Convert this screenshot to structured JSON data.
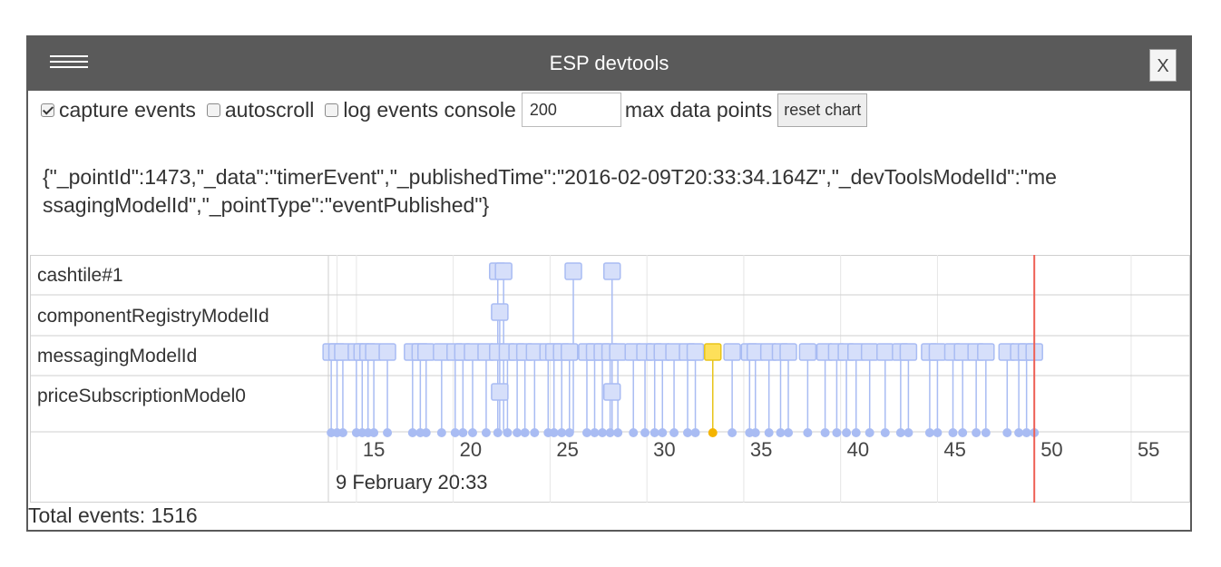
{
  "window": {
    "title": "ESP devtools",
    "close_label": "X"
  },
  "controls": {
    "capture_events": {
      "label": "capture events",
      "checked": true
    },
    "autoscroll": {
      "label": "autoscroll",
      "checked": false
    },
    "log_events_console": {
      "label": "log events console",
      "checked": false
    },
    "max_points_value": "200",
    "max_points_label": "max data points",
    "reset_label": "reset chart"
  },
  "event_json": "{\"_pointId\":1473,\"_data\":\"timerEvent\",\"_publishedTime\":\"2016-02-09T20:33:34.164Z\",\"_devToolsModelId\":\"messagingModelId\",\"_pointType\":\"eventPublished\"}",
  "chart_data": {
    "type": "scatter",
    "rows": [
      "cashtile#1",
      "componentRegistryModelId",
      "messagingModelId",
      "priceSubscriptionModel0"
    ],
    "x_ticks": [
      15,
      20,
      25,
      30,
      35,
      40,
      45,
      50,
      55
    ],
    "x_range": [
      13.6,
      58.0
    ],
    "date_label": "9 February 20:33",
    "now_marker": 50.0,
    "selected_point": {
      "row": "messagingModelId",
      "x": 33.4
    },
    "colors": {
      "point": "#d6dffa",
      "stroke": "#a9bcf3",
      "selected": "#fde05a",
      "selected_stroke": "#e8c41a",
      "now": "#ee6055",
      "grid": "#e6e6e6"
    },
    "messaging_points": [
      13.7,
      14.0,
      14.3,
      15.0,
      15.3,
      15.6,
      15.9,
      16.6,
      17.9,
      18.3,
      18.6,
      19.4,
      20.1,
      20.5,
      21.0,
      21.7,
      22.3,
      22.8,
      23.3,
      23.7,
      24.2,
      24.9,
      25.2,
      25.6,
      26.0,
      26.9,
      27.3,
      27.7,
      28.1,
      28.5,
      29.3,
      29.9,
      30.4,
      30.8,
      31.4,
      32.1,
      32.5,
      33.4,
      34.4,
      35.3,
      35.6,
      36.3,
      36.9,
      37.3,
      38.3,
      39.2,
      39.8,
      40.3,
      40.8,
      41.5,
      42.3,
      43.1,
      43.5,
      44.6,
      45.0,
      45.8,
      46.3,
      47.0,
      47.5,
      48.6,
      49.2,
      49.6,
      50.0
    ],
    "cashtile_points": [
      22.3,
      22.6,
      26.2,
      28.2
    ],
    "registry_points": [
      22.4
    ],
    "price_points": [
      22.4,
      28.2
    ]
  },
  "footer": {
    "total_label": "Total events: 1516"
  }
}
